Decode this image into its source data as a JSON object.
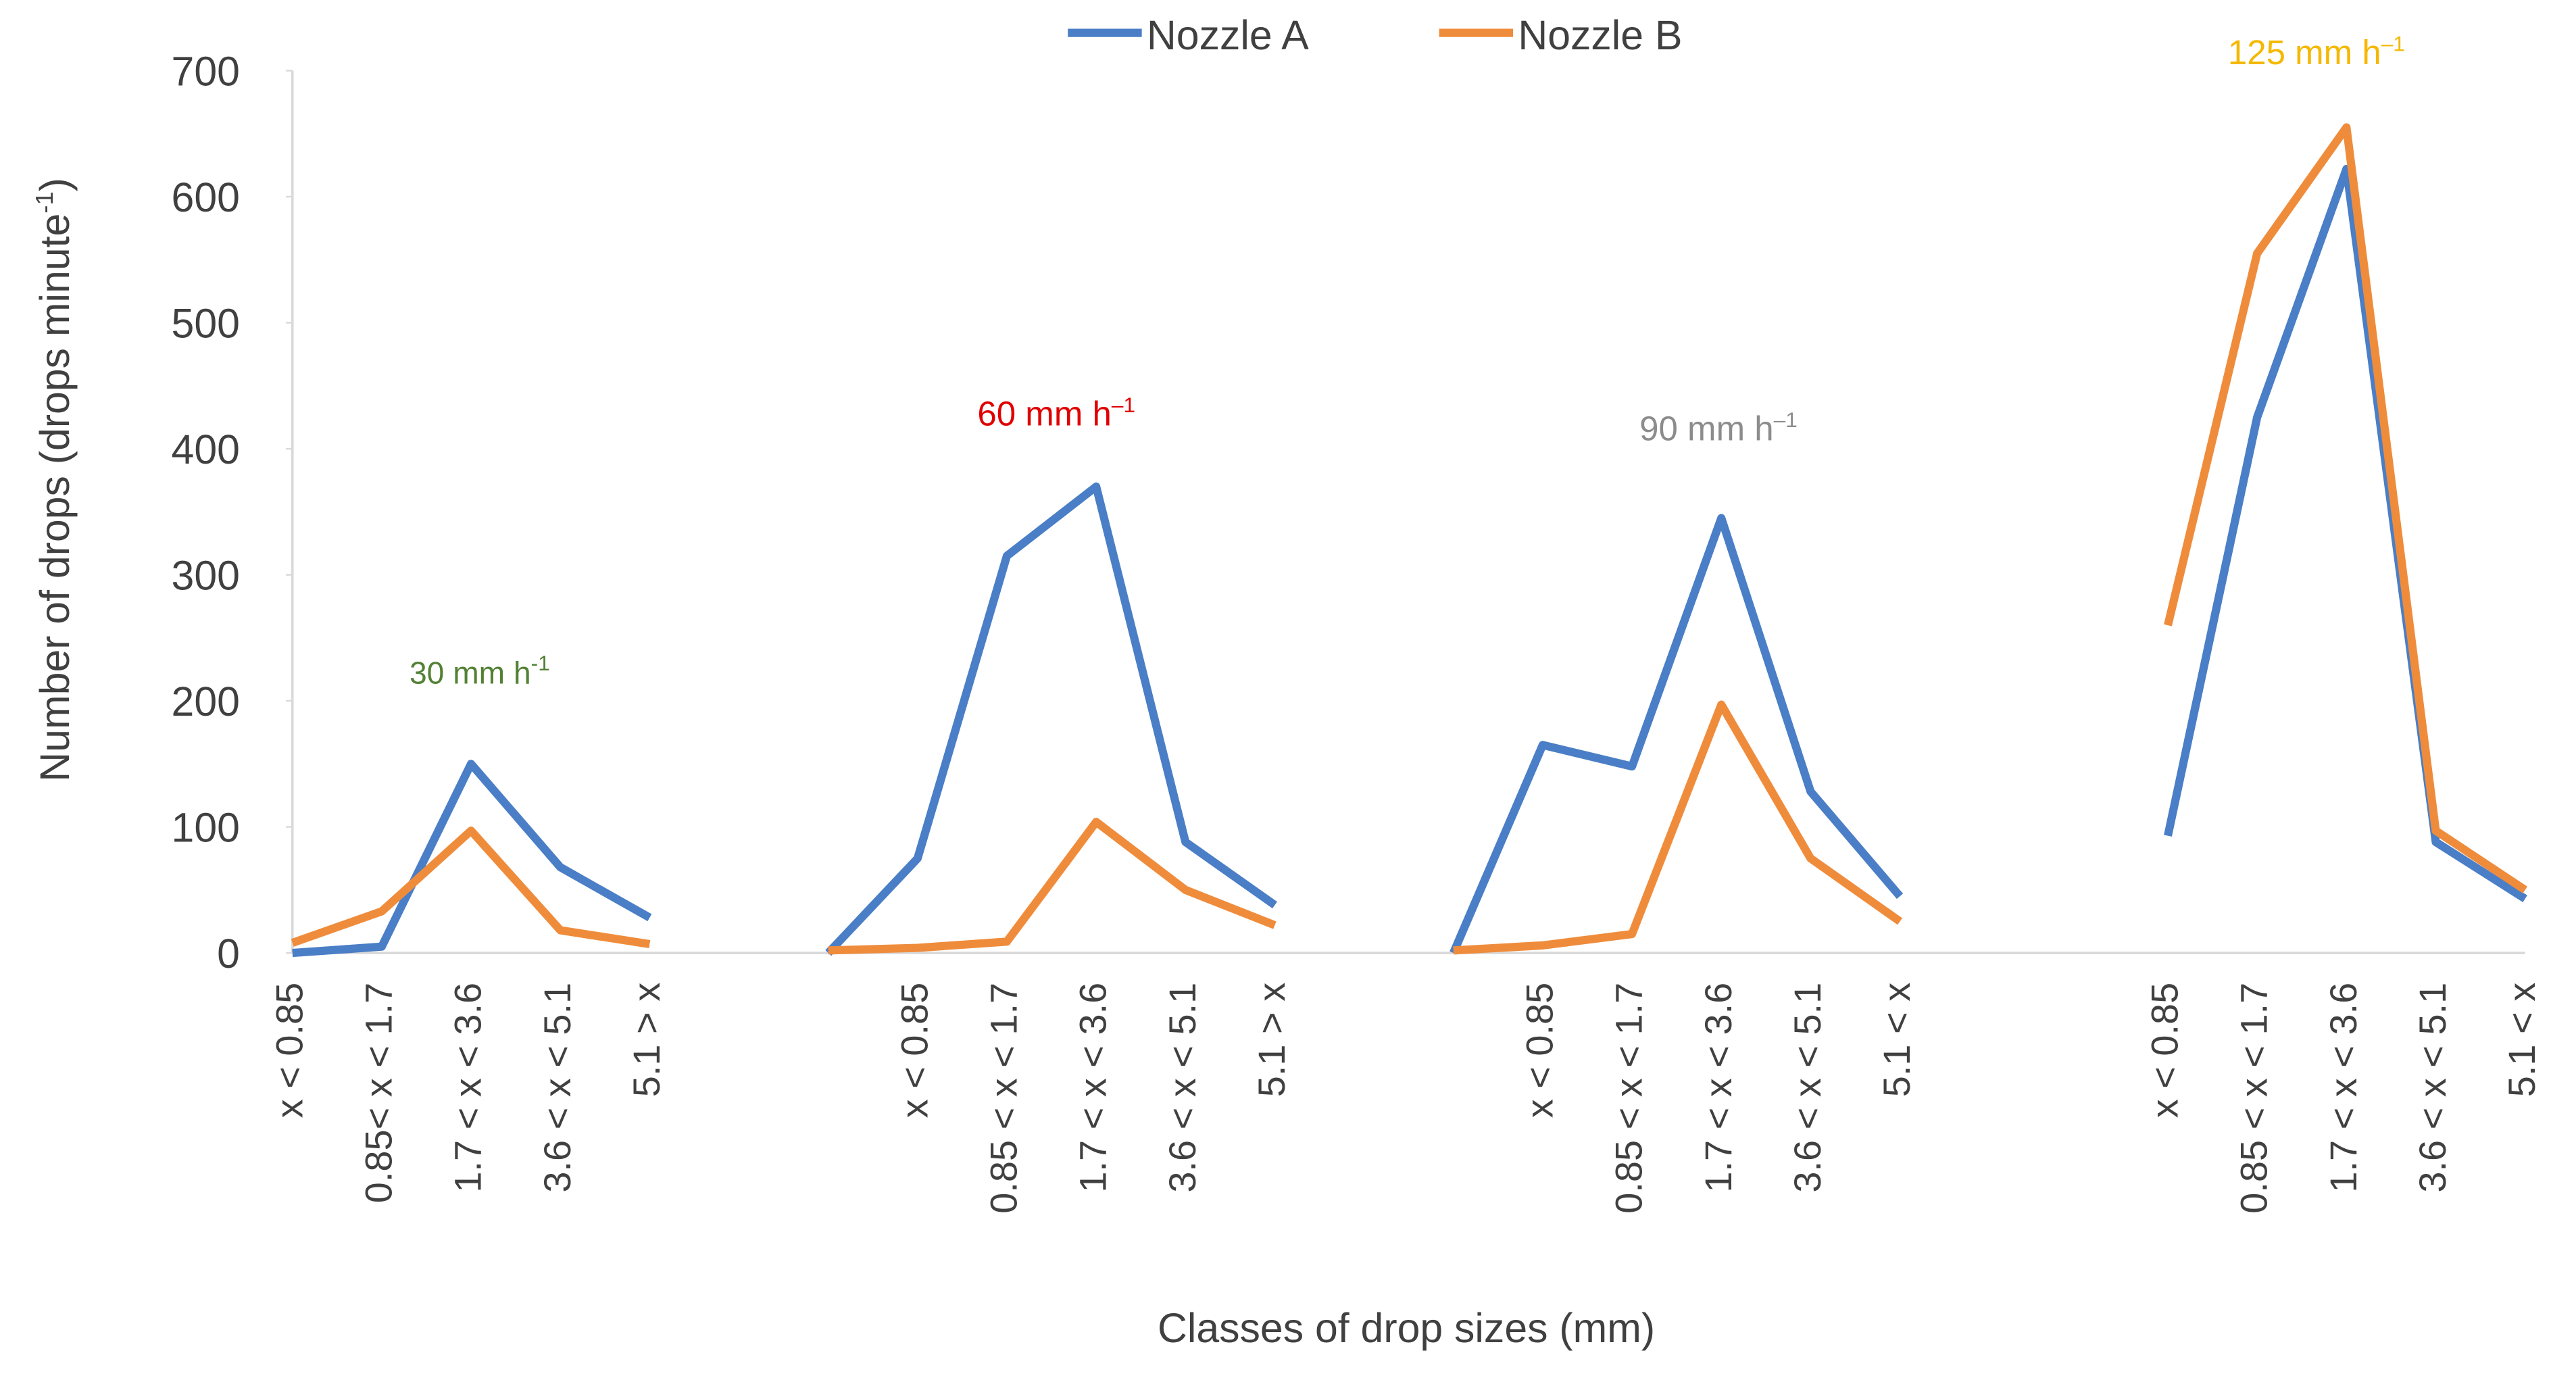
{
  "chart_data": {
    "type": "line",
    "xlabel": "Classes of drop sizes (mm)",
    "ylabel": {
      "text": "Number of drops (drops minute",
      "sup": "-1",
      "tail": ")"
    },
    "categories": [
      "x < 0.85",
      "0.85< x < 1.7",
      "1.7 < x < 3.6",
      "3.6 < x < 5.1",
      "5.1 > x",
      null,
      null,
      "x < 0.85",
      "0.85 < x < 1.7",
      "1.7 < x < 3.6",
      "3.6 < x < 5.1",
      "5.1 > x",
      null,
      null,
      "x < 0.85",
      "0.85 < x < 1.7",
      "1.7 < x < 3.6",
      "3.6 < x < 5.1",
      "5.1 < x",
      null,
      null,
      "x < 0.85",
      "0.85 < x < 1.7",
      "1.7 < x < 3.6",
      "3.6 < x < 5.1",
      "5.1 < x"
    ],
    "series": [
      {
        "name": "Nozzle A",
        "color": "#4a7ec6",
        "values": [
          0,
          5,
          150,
          68,
          28,
          null,
          0,
          75,
          315,
          370,
          88,
          38,
          null,
          0,
          165,
          148,
          345,
          128,
          45,
          null,
          null,
          93,
          425,
          622,
          88,
          43
        ]
      },
      {
        "name": "Nozzle B",
        "color": "#ef8c3c",
        "values": [
          8,
          33,
          97,
          18,
          7,
          null,
          2,
          4,
          9,
          104,
          50,
          22,
          null,
          2,
          6,
          15,
          197,
          75,
          25,
          null,
          null,
          260,
          555,
          655,
          97,
          50
        ]
      }
    ],
    "annotations": [
      {
        "text": "30 mm h",
        "sup": "-1",
        "color": "#538135"
      },
      {
        "text": "60 mm h",
        "sup": "–1",
        "color": "#e00000"
      },
      {
        "text": "90 mm h",
        "sup": "–1",
        "color": "#8c8c8c"
      },
      {
        "text": "125 mm h",
        "sup": "–1",
        "color": "#f5b800"
      }
    ],
    "ylim": [
      0,
      700
    ],
    "yticks": [
      0,
      100,
      200,
      300,
      400,
      500,
      600,
      700
    ],
    "grid": false,
    "legend": "top"
  }
}
